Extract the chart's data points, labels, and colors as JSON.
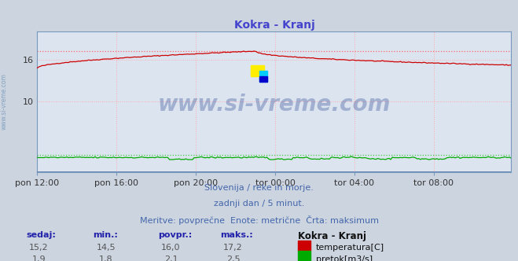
{
  "title": "Kokra - Kranj",
  "title_color": "#4444cc",
  "bg_color": "#ccd4e0",
  "plot_bg_color": "#dce4f0",
  "grid_color": "#ffaaaa",
  "temp_color": "#cc0000",
  "flow_color": "#00aa00",
  "max_temp_color": "#ff6666",
  "max_flow_color": "#44cc44",
  "axis_color": "#7799bb",
  "left_label_color": "#7799bb",
  "watermark": "www.si-vreme.com",
  "watermark_color": "#1a3a8a",
  "watermark_alpha": 0.3,
  "subtitle1": "Slovenija / reke in morje.",
  "subtitle2": "zadnji dan / 5 minut.",
  "subtitle3": "Meritve: povprečne  Enote: metrične  Črta: maksimum",
  "subtitle_color": "#4466aa",
  "stats_headers": [
    "sedaj:",
    "min.:",
    "povpr.:",
    "maks.:"
  ],
  "stats_temp": [
    "15,2",
    "14,5",
    "16,0",
    "17,2"
  ],
  "stats_flow": [
    "1,9",
    "1,8",
    "2,1",
    "2,5"
  ],
  "legend_label": "Kokra - Kranj",
  "legend_temp": "temperatura[C]",
  "legend_flow": "pretok[m3/s]",
  "x_tick_labels": [
    "pon 12:00",
    "pon 16:00",
    "pon 20:00",
    "tor 00:00",
    "tor 04:00",
    "tor 08:00"
  ],
  "x_tick_pos": [
    0,
    48,
    96,
    144,
    192,
    240
  ],
  "n_points": 288,
  "temp_max": 17.2,
  "flow_max": 2.5,
  "ylim": [
    0,
    20
  ],
  "header_color": "#2222aa",
  "val_color": "#555555"
}
